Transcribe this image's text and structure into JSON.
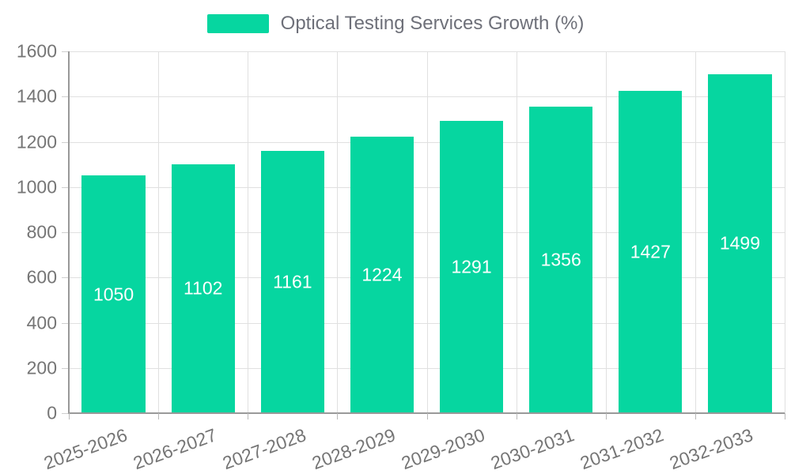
{
  "legend": {
    "label": "Optical Testing Services Growth (%)"
  },
  "colors": {
    "bar": "#06d6a0",
    "grid": "#e0e0e0",
    "axis": "#999999",
    "tick_text": "#757575",
    "bar_label_text": "#ffffff",
    "legend_text": "#6e7079"
  },
  "chart_data": {
    "type": "bar",
    "title": "",
    "xlabel": "",
    "ylabel": "",
    "categories": [
      "2025-2026",
      "2026-2027",
      "2027-2028",
      "2028-2029",
      "2029-2030",
      "2030-2031",
      "2031-2032",
      "2032-2033"
    ],
    "series": [
      {
        "name": "Optical Testing Services Growth (%)",
        "values": [
          1050,
          1102,
          1161,
          1224,
          1291,
          1356,
          1427,
          1499
        ]
      }
    ],
    "bar_value_labels": [
      "1050",
      "1102",
      "1161",
      "1224",
      "1291",
      "1356",
      "1427",
      "1499"
    ],
    "ylim": [
      0,
      1600
    ],
    "ytick_step": 200,
    "ytick_labels": [
      "0",
      "200",
      "400",
      "600",
      "800",
      "1000",
      "1200",
      "1400",
      "1600"
    ],
    "grid": true,
    "legend_position": "top-center",
    "value_label_position": "inside-center",
    "x_label_rotation_deg": -20
  }
}
